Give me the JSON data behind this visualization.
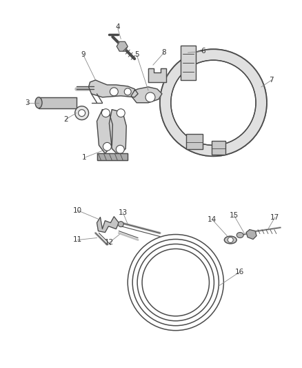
{
  "bg_color": "#ffffff",
  "line_color": "#4a4a4a",
  "label_color": "#333333",
  "fig_width": 4.38,
  "fig_height": 5.33,
  "dpi": 100,
  "callout_color": "#888888",
  "callout_lw": 0.6,
  "label_fs": 7.5
}
